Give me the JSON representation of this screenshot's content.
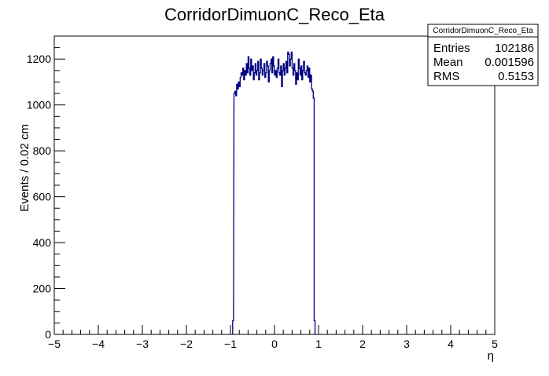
{
  "chart_data": {
    "type": "histogram",
    "title": "CorridorDimuonC_Reco_Eta",
    "xlabel": "η",
    "ylabel": "Events / 0.02 cm",
    "xlim": [
      -5,
      5
    ],
    "ylim": [
      0,
      1300
    ],
    "bin_width": 0.02,
    "line_color": "#000080",
    "x_ticks": [
      -5,
      -4,
      -3,
      -2,
      -1,
      0,
      1,
      2,
      3,
      4,
      5
    ],
    "x_tick_labels": [
      "−5",
      "−4",
      "−3",
      "−2",
      "−1",
      "0",
      "1",
      "2",
      "3",
      "4",
      "5"
    ],
    "y_ticks": [
      0,
      200,
      400,
      600,
      800,
      1000,
      1200
    ],
    "y_tick_labels": [
      "0",
      "200",
      "400",
      "600",
      "800",
      "1000",
      "1200"
    ],
    "grid": false,
    "legend": "none",
    "x": [
      -0.95,
      -0.92,
      -0.9,
      -0.88,
      -0.86,
      -0.84,
      -0.82,
      -0.8,
      -0.78,
      -0.76,
      -0.74,
      -0.72,
      -0.7,
      -0.68,
      -0.66,
      -0.64,
      -0.62,
      -0.6,
      -0.58,
      -0.56,
      -0.54,
      -0.52,
      -0.5,
      -0.48,
      -0.46,
      -0.44,
      -0.42,
      -0.4,
      -0.38,
      -0.36,
      -0.34,
      -0.32,
      -0.3,
      -0.28,
      -0.26,
      -0.24,
      -0.22,
      -0.2,
      -0.18,
      -0.16,
      -0.14,
      -0.12,
      -0.1,
      -0.08,
      -0.06,
      -0.04,
      -0.02,
      0.0,
      0.02,
      0.04,
      0.06,
      0.08,
      0.1,
      0.12,
      0.14,
      0.16,
      0.18,
      0.2,
      0.22,
      0.24,
      0.26,
      0.28,
      0.3,
      0.32,
      0.34,
      0.36,
      0.38,
      0.4,
      0.42,
      0.44,
      0.46,
      0.48,
      0.5,
      0.52,
      0.54,
      0.56,
      0.58,
      0.6,
      0.62,
      0.64,
      0.66,
      0.68,
      0.7,
      0.72,
      0.74,
      0.76,
      0.78,
      0.8,
      0.82,
      0.84,
      0.86,
      0.88,
      0.9,
      0.92
    ],
    "values": [
      60,
      1050,
      1060,
      1040,
      1090,
      1070,
      1100,
      1080,
      1120,
      1140,
      1130,
      1160,
      1110,
      1150,
      1130,
      1180,
      1140,
      1210,
      1160,
      1130,
      1200,
      1150,
      1170,
      1110,
      1140,
      1180,
      1130,
      1150,
      1190,
      1110,
      1140,
      1200,
      1160,
      1130,
      1150,
      1180,
      1120,
      1140,
      1190,
      1170,
      1100,
      1150,
      1180,
      1200,
      1140,
      1210,
      1170,
      1130,
      1150,
      1120,
      1160,
      1200,
      1140,
      1130,
      1170,
      1080,
      1150,
      1180,
      1130,
      1160,
      1190,
      1140,
      1230,
      1220,
      1170,
      1200,
      1230,
      1160,
      1130,
      1180,
      1150,
      1090,
      1140,
      1110,
      1200,
      1160,
      1130,
      1170,
      1110,
      1150,
      1190,
      1140,
      1130,
      1150,
      1170,
      1120,
      1160,
      1100,
      1130,
      1070,
      1060,
      1030,
      60,
      0
    ],
    "stats": {
      "title": "CorridorDimuonC_Reco_Eta",
      "entries_label": "Entries",
      "entries_value": "102186",
      "mean_label": "Mean",
      "mean_value": "0.001596",
      "rms_label": "RMS",
      "rms_value": "0.5153"
    }
  }
}
